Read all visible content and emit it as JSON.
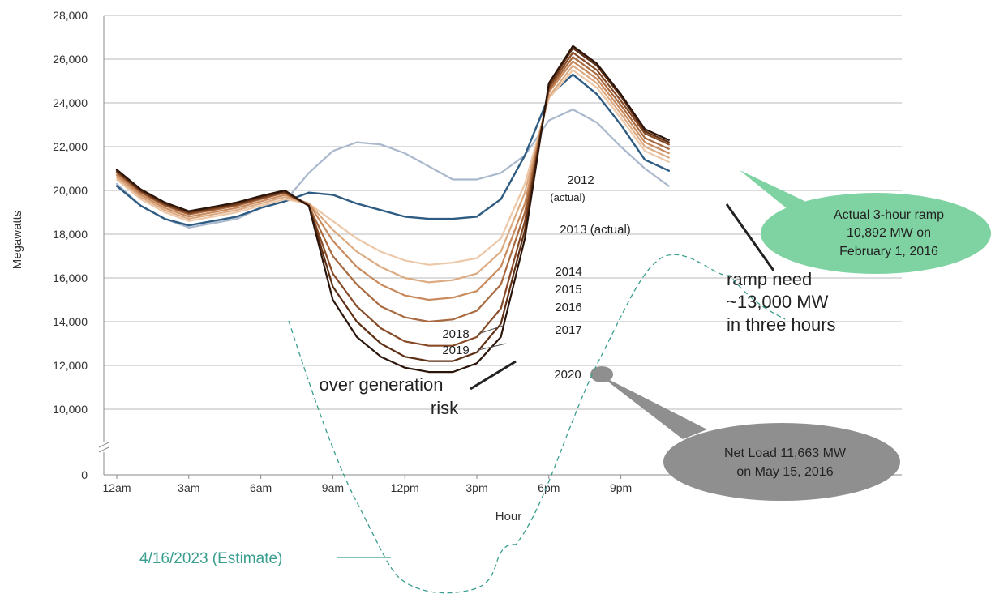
{
  "chart_data": {
    "type": "line",
    "title": "",
    "xlabel": "Hour",
    "ylabel": "Megawatts",
    "x": [
      0,
      1,
      2,
      3,
      4,
      5,
      6,
      7,
      8,
      9,
      10,
      11,
      12,
      13,
      14,
      15,
      16,
      17,
      18,
      19,
      20,
      21,
      22,
      23
    ],
    "x_ticks": [
      {
        "x": 0,
        "label": "12am"
      },
      {
        "x": 3,
        "label": "3am"
      },
      {
        "x": 6,
        "label": "6am"
      },
      {
        "x": 9,
        "label": "9am"
      },
      {
        "x": 12,
        "label": "12pm"
      },
      {
        "x": 15,
        "label": "3pm"
      },
      {
        "x": 18,
        "label": "6pm"
      },
      {
        "x": 21,
        "label": "9pm"
      }
    ],
    "y_ticks": [
      {
        "v": 0,
        "label": "0"
      },
      {
        "v": 10000,
        "label": "10,000"
      },
      {
        "v": 12000,
        "label": "12,000"
      },
      {
        "v": 14000,
        "label": "14,000"
      },
      {
        "v": 16000,
        "label": "16,000"
      },
      {
        "v": 18000,
        "label": "18,000"
      },
      {
        "v": 20000,
        "label": "20,000"
      },
      {
        "v": 22000,
        "label": "22,000"
      },
      {
        "v": 24000,
        "label": "24,000"
      },
      {
        "v": 26000,
        "label": "26,000"
      },
      {
        "v": 28000,
        "label": "28,000"
      }
    ],
    "ylim": [
      0,
      28000
    ],
    "y_axis_break": [
      0,
      10000
    ],
    "grid": true,
    "series": [
      {
        "name": "2012 (actual)",
        "color": "#a9b8cc",
        "values": [
          20300,
          19300,
          18700,
          18300,
          18500,
          18700,
          19200,
          19500,
          20800,
          21800,
          22200,
          22100,
          21700,
          21100,
          20500,
          20500,
          20800,
          21600,
          23200,
          23700,
          23100,
          22000,
          21000,
          20200
        ]
      },
      {
        "name": "2013 (actual)",
        "color": "#2e5b82",
        "values": [
          20200,
          19300,
          18700,
          18400,
          18600,
          18800,
          19200,
          19500,
          19900,
          19800,
          19400,
          19100,
          18800,
          18700,
          18700,
          18800,
          19600,
          21600,
          24300,
          25300,
          24400,
          23000,
          21400,
          20900
        ]
      },
      {
        "name": "2014",
        "color": "#ecc8a9",
        "values": [
          20500,
          19600,
          19000,
          18600,
          18800,
          19000,
          19300,
          19600,
          19400,
          18600,
          17800,
          17200,
          16800,
          16600,
          16700,
          16900,
          17800,
          20300,
          24200,
          25500,
          24700,
          23300,
          21800,
          21300
        ]
      },
      {
        "name": "2015",
        "color": "#ddab82",
        "values": [
          20600,
          19700,
          19100,
          18700,
          18900,
          19100,
          19400,
          19700,
          19400,
          18200,
          17200,
          16500,
          16000,
          15800,
          15900,
          16200,
          17200,
          19900,
          24300,
          25700,
          24900,
          23500,
          22000,
          21500
        ]
      },
      {
        "name": "2016",
        "color": "#c98a5e",
        "values": [
          20700,
          19800,
          19200,
          18800,
          19000,
          19200,
          19500,
          19800,
          19400,
          17700,
          16500,
          15700,
          15200,
          15000,
          15100,
          15400,
          16500,
          19400,
          24500,
          25900,
          25100,
          23700,
          22200,
          21700
        ]
      },
      {
        "name": "2017",
        "color": "#a96a40",
        "values": [
          20800,
          19900,
          19300,
          18900,
          19100,
          19300,
          19600,
          19900,
          19300,
          17000,
          15700,
          14700,
          14200,
          14000,
          14100,
          14500,
          15700,
          19000,
          24600,
          26100,
          25300,
          23900,
          22400,
          21900
        ]
      },
      {
        "name": "2018",
        "color": "#874a26",
        "values": [
          20850,
          19950,
          19350,
          18950,
          19150,
          19350,
          19650,
          19900,
          19300,
          16200,
          14700,
          13700,
          13100,
          12900,
          12900,
          13300,
          14600,
          18600,
          24700,
          26300,
          25500,
          24100,
          22600,
          22100
        ]
      },
      {
        "name": "2019",
        "color": "#5e2f14",
        "values": [
          20900,
          20000,
          19400,
          19000,
          19200,
          19400,
          19700,
          19950,
          19300,
          15600,
          14000,
          13000,
          12400,
          12200,
          12200,
          12600,
          13900,
          18200,
          24800,
          26500,
          25700,
          24300,
          22700,
          22200
        ]
      },
      {
        "name": "2020",
        "color": "#2b140a",
        "values": [
          20950,
          20050,
          19450,
          19050,
          19250,
          19450,
          19750,
          20000,
          19300,
          15000,
          13300,
          12400,
          11900,
          11700,
          11700,
          12100,
          13300,
          17800,
          24900,
          26600,
          25800,
          24400,
          22800,
          22300
        ]
      }
    ]
  },
  "labels": {
    "s2012": "2012",
    "s2012_sub": "(actual)",
    "s2013": "2013 (actual)",
    "s2014": "2014",
    "s2015": "2015",
    "s2016": "2016",
    "s2017": "2017",
    "s2018": "2018",
    "s2019": "2019",
    "s2020": "2020",
    "ramp_need_1": "ramp need",
    "ramp_need_2": "~13,000 MW",
    "ramp_need_3": "in three hours",
    "over_gen_1": "over generation",
    "over_gen_2": "risk",
    "green_callout_1": "Actual 3-hour ramp",
    "green_callout_2": "10,892 MW on",
    "green_callout_3": "February 1, 2016",
    "grey_callout_1": "Net Load 11,663 MW",
    "grey_callout_2": "on May 15, 2016",
    "estimate_label": "4/16/2023 (Estimate)"
  },
  "colors": {
    "grid": "#b9b9b9",
    "green_callout": "#7fd3a2",
    "grey_callout": "#8f8f8f",
    "estimate": "#3a9e8f"
  }
}
